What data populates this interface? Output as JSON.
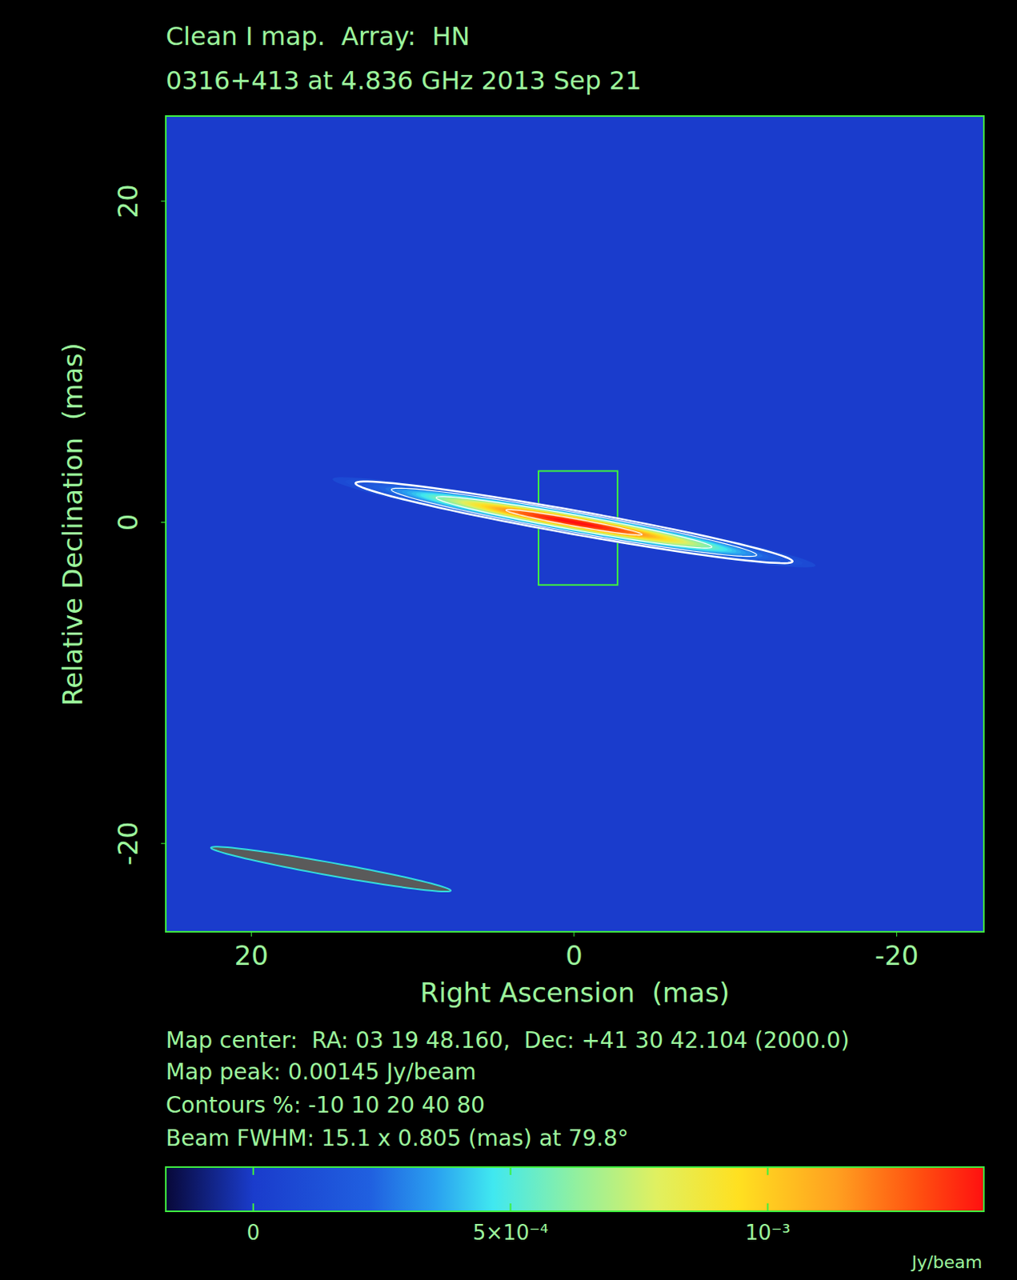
{
  "chart_data": {
    "type": "heatmap",
    "title": "Clean I map.  Array:  HN",
    "subtitle": "0316+413 at 4.836 GHz 2013 Sep 21",
    "x_label": "Right Ascension  (mas)",
    "y_label": "Relative Declination  (mas)",
    "xlim": [
      25.3,
      -25.4
    ],
    "ylim": [
      -25.5,
      25.3
    ],
    "xticks": [
      20,
      0,
      -20
    ],
    "yticks": [
      -20,
      0,
      20
    ],
    "map_center": "Map center:  RA: 03 19 48.160,  Dec: +41 30 42.104 (2000.0)",
    "map_peak": {
      "value": 0.00145,
      "label": "Map peak: 0.00145 Jy/beam"
    },
    "contours": {
      "levels": [
        -10,
        10,
        20,
        40,
        80
      ],
      "label": "Contours %: -10 10 20 40 80"
    },
    "beam": {
      "major": 15.1,
      "minor": 0.805,
      "pa": 79.8,
      "label": "Beam FWHM: 15.1 x 0.805 (mas) at 79.8°"
    },
    "source": {
      "x": 0,
      "y": 0
    },
    "clean_box": {
      "x": [
        2.2,
        -2.7
      ],
      "y": [
        3.2,
        -3.9
      ]
    },
    "colorbar": {
      "range": [
        -0.00017,
        0.00142
      ],
      "ticks": [
        0,
        {
          "value": 0.0005,
          "label": "5×10⁻⁴"
        },
        {
          "value": 0.001,
          "label": "10⁻³"
        }
      ],
      "label": "Jy/beam"
    }
  }
}
